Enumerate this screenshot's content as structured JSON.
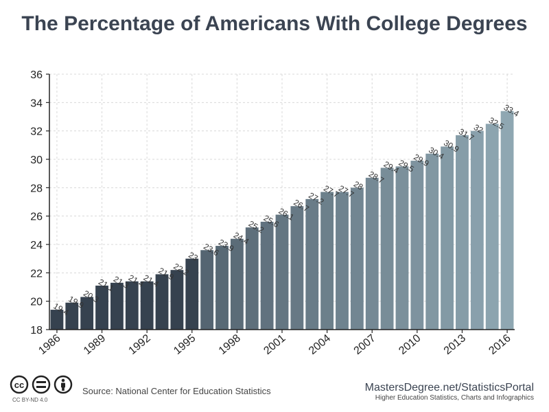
{
  "title": "The Percentage of Americans With College Degrees",
  "chart_data": {
    "type": "bar",
    "categories": [
      "1986",
      "1987",
      "1988",
      "1989",
      "1990",
      "1991",
      "1992",
      "1993",
      "1994",
      "1995",
      "1996",
      "1997",
      "1998",
      "1999",
      "2000",
      "2001",
      "2002",
      "2003",
      "2004",
      "2005",
      "2006",
      "2007",
      "2008",
      "2009",
      "2010",
      "2011",
      "2012",
      "2013",
      "2014",
      "2015",
      "2016"
    ],
    "values": [
      19.4,
      19.9,
      20.3,
      21.1,
      21.3,
      21.4,
      21.4,
      21.9,
      22.2,
      23,
      23.6,
      23.9,
      24.4,
      25.2,
      25.6,
      26.1,
      26.7,
      27.2,
      27.7,
      27.7,
      28,
      28.7,
      29.4,
      29.5,
      29.9,
      30.4,
      30.9,
      31.7,
      32,
      32.5,
      33.4
    ],
    "data_labels": [
      "19.4",
      "19.9",
      "20.3",
      "21.1",
      "21.3",
      "21.4",
      "21.4",
      "21.9",
      "22.2",
      "23",
      "23.6",
      "23.9",
      "24.4",
      "25.2",
      "25.6",
      "26.1",
      "26.7",
      "27.2",
      "27.7",
      "27.7",
      "28",
      "28.7",
      "29.4",
      "29.5",
      "29.9",
      "30.4",
      "30.9",
      "31.7",
      "32",
      "32.5",
      "33.4"
    ],
    "x_tick_labels": [
      "1986",
      "1989",
      "1992",
      "1995",
      "1998",
      "2001",
      "2004",
      "2007",
      "2010",
      "2013",
      "2016"
    ],
    "y_ticks": [
      18,
      20,
      22,
      24,
      26,
      28,
      30,
      32,
      34,
      36
    ],
    "ylim": [
      18,
      36
    ],
    "grid": true,
    "xlabel": "",
    "ylabel": "",
    "colors": {
      "start": "#36424f",
      "end": "#8fa7b2",
      "grid": "#d8d8d8",
      "axis": "#222222"
    }
  },
  "footer": {
    "source": "Source: National Center for Education Statistics",
    "license": "CC BY-ND 4.0",
    "brand": "MastersDegree.net/StatisticsPortal",
    "tagline": "Higher Education Statistics, Charts and Infographics"
  }
}
